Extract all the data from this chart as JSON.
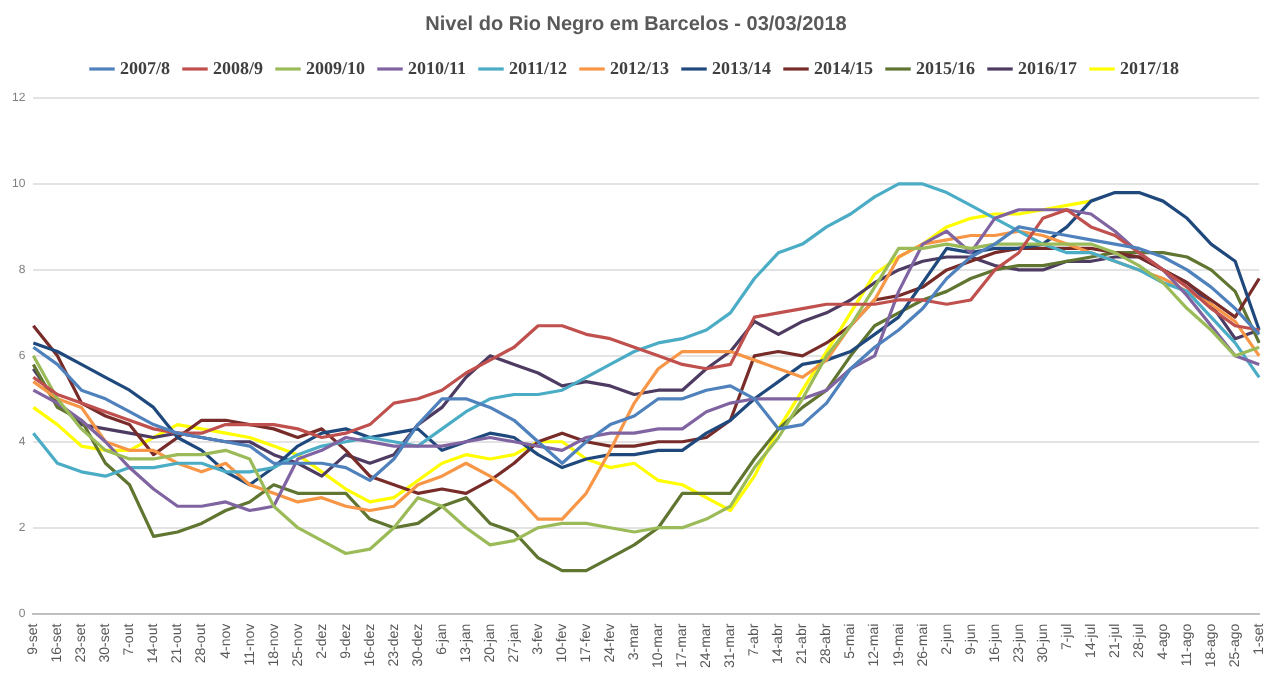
{
  "chart_data": {
    "type": "line",
    "title": "Nivel do Rio Negro em Barcelos - 03/03/2018",
    "categories": [
      "9-set",
      "16-set",
      "23-set",
      "30-set",
      "7-out",
      "14-out",
      "21-out",
      "28-out",
      "4-nov",
      "11-nov",
      "18-nov",
      "25-nov",
      "2-dez",
      "9-dez",
      "16-dez",
      "23-dez",
      "30-dez",
      "6-jan",
      "13-jan",
      "20-jan",
      "27-jan",
      "3-fev",
      "10-fev",
      "17-fev",
      "24-fev",
      "3-mar",
      "10-mar",
      "17-mar",
      "24-mar",
      "31-mar",
      "7-abr",
      "14-abr",
      "21-abr",
      "28-abr",
      "5-mai",
      "12-mai",
      "19-mai",
      "26-mai",
      "2-jun",
      "9-jun",
      "16-jun",
      "23-jun",
      "30-jun",
      "7-jul",
      "14-jul",
      "21-jul",
      "28-jul",
      "4-ago",
      "11-ago",
      "18-ago",
      "25-ago",
      "1-set"
    ],
    "ylim": [
      0,
      12
    ],
    "yticks": [
      0,
      2,
      4,
      6,
      8,
      10,
      12
    ],
    "grid": "y",
    "legend": "top",
    "marker": "none",
    "line_style": "solid",
    "series": [
      {
        "name": "2007/8",
        "color": "#4f81bd",
        "values": [
          6.2,
          5.8,
          5.2,
          5.0,
          4.7,
          4.4,
          4.2,
          4.1,
          4.0,
          3.9,
          3.5,
          3.5,
          3.5,
          3.4,
          3.1,
          3.6,
          4.4,
          5.0,
          5.0,
          4.8,
          4.5,
          4.0,
          3.5,
          4.0,
          4.4,
          4.6,
          5.0,
          5.0,
          5.2,
          5.3,
          5.0,
          4.3,
          4.4,
          4.9,
          5.7,
          6.2,
          6.6,
          7.1,
          7.8,
          8.3,
          8.6,
          9.0,
          8.9,
          8.8,
          8.7,
          8.6,
          8.5,
          8.3,
          8.0,
          7.6,
          7.1,
          6.5
        ]
      },
      {
        "name": "2008/9",
        "color": "#c0504d",
        "values": [
          5.5,
          5.1,
          4.9,
          4.7,
          4.5,
          4.3,
          4.2,
          4.2,
          4.4,
          4.4,
          4.4,
          4.3,
          4.1,
          4.2,
          4.4,
          4.9,
          5.0,
          5.2,
          5.6,
          5.9,
          6.2,
          6.7,
          6.7,
          6.5,
          6.4,
          6.2,
          6.0,
          5.8,
          5.7,
          5.8,
          6.9,
          7.0,
          7.1,
          7.2,
          7.2,
          7.2,
          7.3,
          7.3,
          7.2,
          7.3,
          8.0,
          8.4,
          9.2,
          9.4,
          9.0,
          8.8,
          8.4,
          8.0,
          7.6,
          7.1,
          6.7,
          6.6
        ]
      },
      {
        "name": "2009/10",
        "color": "#9bbb59",
        "values": [
          6.0,
          5.0,
          4.3,
          3.8,
          3.6,
          3.6,
          3.7,
          3.7,
          3.8,
          3.6,
          2.5,
          2.0,
          1.7,
          1.4,
          1.5,
          2.0,
          2.7,
          2.5,
          2.0,
          1.6,
          1.7,
          2.0,
          2.1,
          2.1,
          2.0,
          1.9,
          2.0,
          2.0,
          2.2,
          2.5,
          3.4,
          4.1,
          5.0,
          6.0,
          6.7,
          7.6,
          8.5,
          8.5,
          8.6,
          8.5,
          8.6,
          8.6,
          8.6,
          8.6,
          8.6,
          8.4,
          8.1,
          7.7,
          7.1,
          6.6,
          6.0,
          6.2
        ]
      },
      {
        "name": "2010/11",
        "color": "#8064a2",
        "values": [
          5.2,
          4.9,
          4.5,
          4.0,
          3.4,
          2.9,
          2.5,
          2.5,
          2.6,
          2.4,
          2.5,
          3.6,
          3.8,
          4.1,
          4.0,
          3.9,
          3.9,
          3.9,
          4.0,
          4.1,
          4.0,
          3.9,
          3.8,
          4.1,
          4.2,
          4.2,
          4.3,
          4.3,
          4.7,
          4.9,
          5.0,
          5.0,
          5.0,
          5.2,
          5.7,
          6.0,
          7.5,
          8.6,
          8.9,
          8.4,
          9.2,
          9.4,
          9.4,
          9.4,
          9.3,
          8.9,
          8.4,
          8.0,
          7.4,
          6.7,
          6.0,
          5.8
        ]
      },
      {
        "name": "2011/12",
        "color": "#4bacc6",
        "values": [
          4.2,
          3.5,
          3.3,
          3.2,
          3.4,
          3.4,
          3.5,
          3.5,
          3.3,
          3.3,
          3.4,
          3.7,
          3.9,
          4.0,
          4.1,
          4.0,
          3.9,
          4.3,
          4.7,
          5.0,
          5.1,
          5.1,
          5.2,
          5.5,
          5.8,
          6.1,
          6.3,
          6.4,
          6.6,
          7.0,
          7.8,
          8.4,
          8.6,
          9.0,
          9.3,
          9.7,
          10.0,
          10.0,
          9.8,
          9.5,
          9.2,
          8.9,
          8.6,
          8.4,
          8.4,
          8.2,
          8.0,
          7.7,
          7.5,
          6.9,
          6.3,
          5.5
        ]
      },
      {
        "name": "2012/13",
        "color": "#f79646",
        "values": [
          5.4,
          5.0,
          4.8,
          4.0,
          3.8,
          3.8,
          3.5,
          3.3,
          3.5,
          3.0,
          2.8,
          2.6,
          2.7,
          2.5,
          2.4,
          2.5,
          3.0,
          3.2,
          3.5,
          3.2,
          2.8,
          2.2,
          2.2,
          2.8,
          3.8,
          4.9,
          5.7,
          6.1,
          6.1,
          6.1,
          5.9,
          5.7,
          5.5,
          5.9,
          6.7,
          7.3,
          8.3,
          8.6,
          8.7,
          8.8,
          8.8,
          8.9,
          8.8,
          8.6,
          8.4,
          8.2,
          8.0,
          7.8,
          7.5,
          7.2,
          6.8,
          6.0
        ]
      },
      {
        "name": "2013/14",
        "color": "#1f497d",
        "values": [
          6.3,
          6.1,
          5.8,
          5.5,
          5.2,
          4.8,
          4.1,
          3.8,
          3.3,
          3.0,
          3.4,
          3.9,
          4.2,
          4.3,
          4.1,
          4.2,
          4.3,
          3.8,
          4.0,
          4.2,
          4.1,
          3.7,
          3.4,
          3.6,
          3.7,
          3.7,
          3.8,
          3.8,
          4.2,
          4.5,
          5.0,
          5.4,
          5.8,
          5.9,
          6.1,
          6.5,
          6.9,
          7.7,
          8.5,
          8.4,
          8.5,
          8.5,
          8.6,
          9.0,
          9.6,
          9.8,
          9.8,
          9.6,
          9.2,
          8.6,
          8.2,
          6.6
        ]
      },
      {
        "name": "2014/15",
        "color": "#772c2a",
        "values": [
          6.7,
          6.0,
          4.9,
          4.6,
          4.4,
          3.7,
          4.1,
          4.5,
          4.5,
          4.4,
          4.3,
          4.1,
          4.3,
          3.8,
          3.2,
          3.0,
          2.8,
          2.9,
          2.8,
          3.1,
          3.5,
          4.0,
          4.2,
          4.0,
          3.9,
          3.9,
          4.0,
          4.0,
          4.1,
          4.5,
          6.0,
          6.1,
          6.0,
          6.3,
          6.7,
          7.3,
          7.4,
          7.6,
          8.0,
          8.2,
          8.4,
          8.5,
          8.5,
          8.5,
          8.5,
          8.4,
          8.3,
          8.0,
          7.7,
          7.3,
          6.9,
          7.8
        ]
      },
      {
        "name": "2015/16",
        "color": "#5f7530",
        "values": [
          5.8,
          4.8,
          4.5,
          3.5,
          3.0,
          1.8,
          1.9,
          2.1,
          2.4,
          2.6,
          3.0,
          2.8,
          2.8,
          2.8,
          2.2,
          2.0,
          2.1,
          2.5,
          2.7,
          2.1,
          1.9,
          1.3,
          1.0,
          1.0,
          1.3,
          1.6,
          2.0,
          2.8,
          2.8,
          2.8,
          3.6,
          4.3,
          4.8,
          5.2,
          6.0,
          6.7,
          7.0,
          7.3,
          7.5,
          7.8,
          8.0,
          8.1,
          8.1,
          8.2,
          8.3,
          8.4,
          8.4,
          8.4,
          8.3,
          8.0,
          7.5,
          6.3
        ]
      },
      {
        "name": "2016/17",
        "color": "#4d3b62",
        "values": [
          5.7,
          4.9,
          4.4,
          4.3,
          4.2,
          4.1,
          4.2,
          4.1,
          4.0,
          4.0,
          3.7,
          3.5,
          3.2,
          3.7,
          3.5,
          3.7,
          4.4,
          4.8,
          5.5,
          6.0,
          5.8,
          5.6,
          5.3,
          5.4,
          5.3,
          5.1,
          5.2,
          5.2,
          5.7,
          6.1,
          6.8,
          6.5,
          6.8,
          7.0,
          7.3,
          7.7,
          8.0,
          8.2,
          8.3,
          8.3,
          8.1,
          8.0,
          8.0,
          8.2,
          8.2,
          8.3,
          8.3,
          8.0,
          7.7,
          7.2,
          6.4,
          6.6
        ]
      },
      {
        "name": "2017/18",
        "color": "#ffff00",
        "values": [
          4.8,
          4.4,
          3.9,
          3.8,
          3.8,
          4.1,
          4.4,
          4.3,
          4.2,
          4.1,
          3.9,
          3.7,
          3.3,
          2.9,
          2.6,
          2.7,
          3.1,
          3.5,
          3.7,
          3.6,
          3.7,
          4.0,
          4.0,
          3.6,
          3.4,
          3.5,
          3.1,
          3.0,
          2.7,
          2.4,
          3.2,
          4.3,
          5.2,
          6.1,
          7.0,
          7.9,
          8.3,
          8.6,
          9.0,
          9.2,
          9.3,
          9.3,
          9.4,
          9.5,
          9.6,
          null,
          null,
          null,
          null,
          null,
          null,
          null
        ]
      }
    ]
  }
}
